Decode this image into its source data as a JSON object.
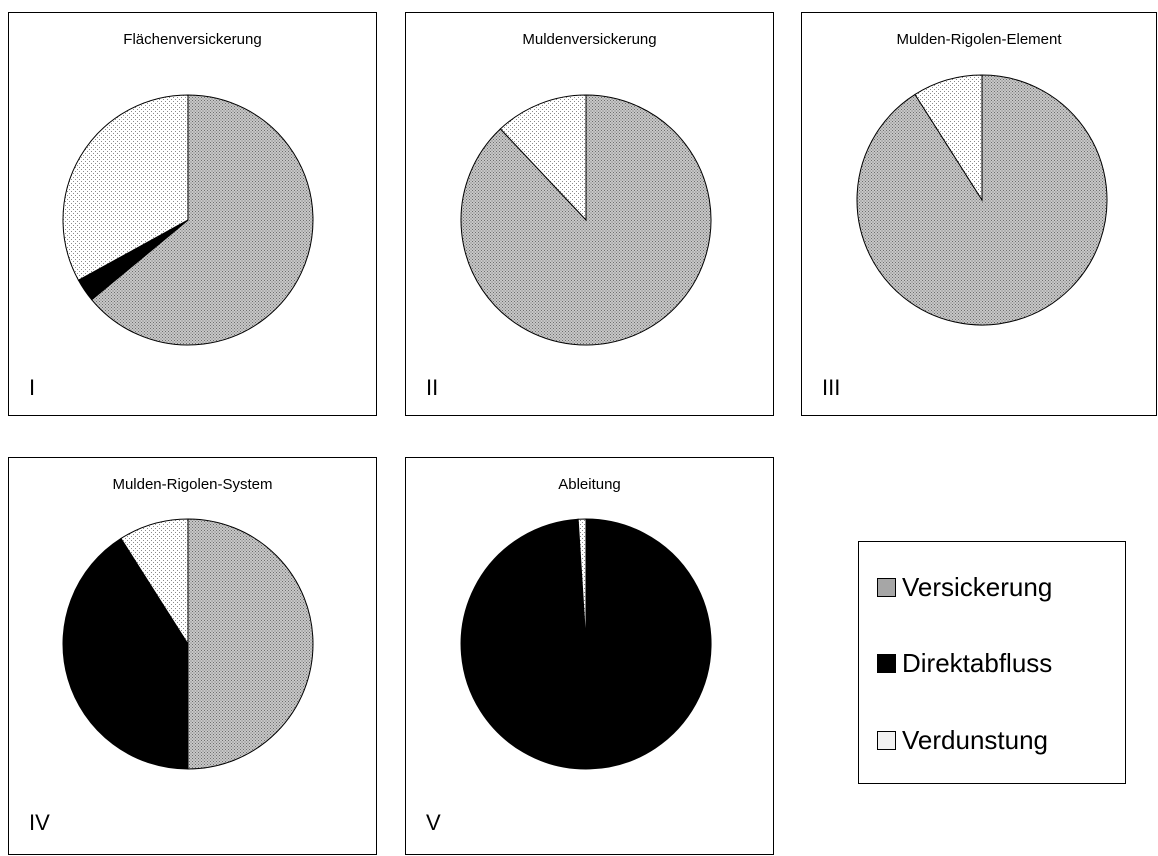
{
  "colors": {
    "versickerung": "#a6a6a6",
    "direktabfluss": "#000000",
    "verdunstung": "#f2f2f2"
  },
  "legend": {
    "items": [
      {
        "key": "versickerung",
        "label": "Versickerung"
      },
      {
        "key": "direktabfluss",
        "label": "Direktabfluss"
      },
      {
        "key": "verdunstung",
        "label": "Verdunstung"
      }
    ]
  },
  "chart_data": [
    {
      "type": "pie",
      "title": "Flächenversickerung",
      "panel_label": "I",
      "categories": [
        "Versickerung",
        "Direktabfluss",
        "Verdunstung"
      ],
      "values": [
        64,
        3,
        33
      ]
    },
    {
      "type": "pie",
      "title": "Muldenversickerung",
      "panel_label": "II",
      "categories": [
        "Versickerung",
        "Direktabfluss",
        "Verdunstung"
      ],
      "values": [
        88,
        0,
        12
      ]
    },
    {
      "type": "pie",
      "title": "Mulden-Rigolen-Element",
      "panel_label": "III",
      "categories": [
        "Versickerung",
        "Direktabfluss",
        "Verdunstung"
      ],
      "values": [
        91,
        0,
        9
      ]
    },
    {
      "type": "pie",
      "title": "Mulden-Rigolen-System",
      "panel_label": "IV",
      "categories": [
        "Versickerung",
        "Direktabfluss",
        "Verdunstung"
      ],
      "values": [
        50,
        41,
        9
      ]
    },
    {
      "type": "pie",
      "title": "Ableitung",
      "panel_label": "V",
      "categories": [
        "Versickerung",
        "Direktabfluss",
        "Verdunstung"
      ],
      "values": [
        0,
        99,
        1
      ]
    }
  ]
}
